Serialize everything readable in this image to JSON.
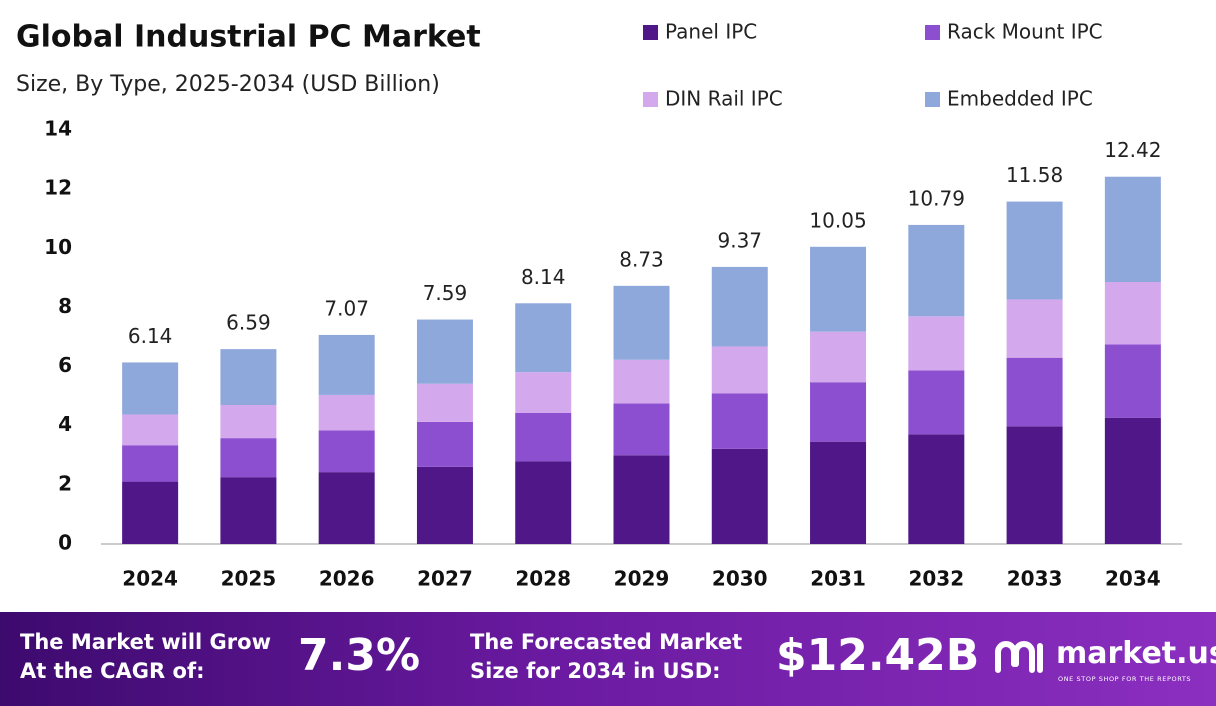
{
  "chart_data": {
    "type": "stacked-bar",
    "title": "Global Industrial PC Market",
    "subtitle": "Size, By Type, 2025-2034 (USD Billion)",
    "categories": [
      "2024",
      "2025",
      "2026",
      "2027",
      "2028",
      "2029",
      "2030",
      "2031",
      "2032",
      "2033",
      "2034"
    ],
    "series": [
      {
        "name": "Panel IPC",
        "color": "#4f1787",
        "values": [
          2.11,
          2.26,
          2.43,
          2.61,
          2.8,
          3.0,
          3.22,
          3.46,
          3.71,
          3.98,
          4.27
        ]
      },
      {
        "name": "Rack Mount IPC",
        "color": "#8b4fd0",
        "values": [
          1.23,
          1.32,
          1.41,
          1.52,
          1.63,
          1.75,
          1.87,
          2.01,
          2.16,
          2.32,
          2.48
        ]
      },
      {
        "name": "DIN Rail IPC",
        "color": "#d4a8ec",
        "values": [
          1.04,
          1.12,
          1.2,
          1.29,
          1.38,
          1.48,
          1.59,
          1.71,
          1.83,
          1.97,
          2.11
        ]
      },
      {
        "name": "Embedded IPC",
        "color": "#8fa8dc",
        "values": [
          1.76,
          1.89,
          2.03,
          2.17,
          2.33,
          2.5,
          2.69,
          2.87,
          3.09,
          3.31,
          3.56
        ]
      }
    ],
    "totals": [
      6.14,
      6.59,
      7.07,
      7.59,
      8.14,
      8.73,
      9.37,
      10.05,
      10.79,
      11.58,
      12.42
    ],
    "ylim": [
      0,
      14
    ],
    "yticks": [
      0,
      2,
      4,
      6,
      8,
      10,
      12,
      14
    ],
    "grid": false
  },
  "footer": {
    "cagr_label": [
      "The Market will Grow",
      "At the CAGR of:"
    ],
    "cagr": "7.3%",
    "forecast_label": [
      "The Forecasted Market",
      "Size for 2034 in USD:"
    ],
    "forecast": "$12.42B",
    "logo": "market.us",
    "tagline": "ONE STOP SHOP FOR THE REPORTS"
  }
}
